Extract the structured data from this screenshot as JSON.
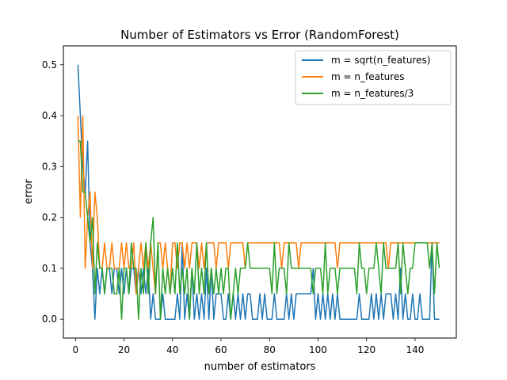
{
  "chart_data": {
    "type": "line",
    "title": "Number of Estimators vs Error (RandomForest)",
    "title_color": "#1f77b4",
    "xlabel": "number of estimators",
    "ylabel": "error",
    "xlim": [
      -5,
      157
    ],
    "ylim": [
      -0.037,
      0.537
    ],
    "xticks": [
      0,
      20,
      40,
      60,
      80,
      100,
      120,
      140
    ],
    "yticks": [
      0.0,
      0.1,
      0.2,
      0.3,
      0.4,
      0.5
    ],
    "xtick_labels": [
      "0",
      "20",
      "40",
      "60",
      "80",
      "100",
      "120",
      "140"
    ],
    "ytick_labels": [
      "0.0",
      "0.1",
      "0.2",
      "0.3",
      "0.4",
      "0.5"
    ],
    "grid": false,
    "legend_position": "top-right",
    "series": [
      {
        "name": "m = sqrt(n_features)",
        "color": "#1f77b4",
        "x": [
          1,
          2,
          3,
          4,
          5,
          6,
          7,
          8,
          9,
          10,
          11,
          12,
          13,
          14,
          15,
          16,
          17,
          18,
          19,
          20,
          21,
          22,
          23,
          24,
          25,
          26,
          27,
          28,
          29,
          30,
          31,
          32,
          33,
          34,
          35,
          36,
          37,
          38,
          39,
          40,
          41,
          42,
          43,
          44,
          45,
          46,
          47,
          48,
          49,
          50,
          51,
          52,
          53,
          54,
          55,
          56,
          57,
          58,
          59,
          60,
          61,
          62,
          63,
          64,
          65,
          66,
          67,
          68,
          69,
          70,
          71,
          72,
          73,
          74,
          75,
          76,
          77,
          78,
          79,
          80,
          81,
          82,
          83,
          84,
          85,
          86,
          87,
          88,
          89,
          90,
          91,
          92,
          93,
          94,
          95,
          96,
          97,
          98,
          99,
          100,
          101,
          102,
          103,
          104,
          105,
          106,
          107,
          108,
          109,
          110,
          111,
          112,
          113,
          114,
          115,
          116,
          117,
          118,
          119,
          120,
          121,
          122,
          123,
          124,
          125,
          126,
          127,
          128,
          129,
          130,
          131,
          132,
          133,
          134,
          135,
          136,
          137,
          138,
          139,
          140,
          141,
          142,
          143,
          144,
          145,
          146,
          147,
          148,
          149,
          150
        ],
        "values": [
          0.5,
          0.4,
          0.3,
          0.25,
          0.35,
          0.15,
          0.1,
          0.0,
          0.1,
          0.05,
          0.1,
          0.05,
          0.1,
          0.1,
          0.05,
          0.1,
          0.1,
          0.05,
          0.1,
          0.05,
          0.1,
          0.05,
          0.1,
          0.1,
          0.05,
          0.1,
          0.05,
          0.1,
          0.05,
          0.1,
          0.0,
          0.05,
          0.0,
          0.0,
          0.0,
          0.05,
          0.0,
          0.0,
          0.0,
          0.0,
          0.0,
          0.05,
          0.0,
          0.15,
          0.0,
          0.05,
          0.0,
          0.1,
          0.0,
          0.05,
          0.0,
          0.05,
          0.0,
          0.1,
          0.0,
          0.1,
          0.0,
          0.05,
          0.05,
          0.05,
          0.0,
          0.0,
          0.05,
          0.0,
          0.05,
          0.0,
          0.05,
          0.0,
          0.05,
          0.0,
          0.05,
          0.05,
          0.0,
          0.0,
          0.0,
          0.05,
          0.0,
          0.05,
          0.0,
          0.0,
          0.0,
          0.05,
          0.0,
          0.0,
          0.0,
          0.0,
          0.05,
          0.0,
          0.05,
          0.0,
          0.05,
          0.05,
          0.05,
          0.05,
          0.05,
          0.05,
          0.05,
          0.1,
          0.0,
          0.05,
          0.0,
          0.05,
          0.0,
          0.05,
          0.0,
          0.05,
          0.0,
          0.05,
          0.0,
          0.0,
          0.0,
          0.0,
          0.0,
          0.0,
          0.0,
          0.0,
          0.05,
          0.0,
          0.0,
          0.0,
          0.0,
          0.05,
          0.0,
          0.05,
          0.0,
          0.05,
          0.0,
          0.05,
          0.05,
          0.05,
          0.0,
          0.05,
          0.0,
          0.1,
          0.0,
          0.05,
          0.0,
          0.0,
          0.05,
          0.0,
          0.0,
          0.05,
          0.0,
          0.0,
          0.0,
          0.0,
          0.15,
          0.0,
          0.0,
          0.0
        ],
        "note_first": ""
      },
      {
        "name": "m = n_features",
        "color": "#ff7f0e",
        "x": [
          1,
          2,
          3,
          4,
          5,
          6,
          7,
          8,
          9,
          10,
          11,
          12,
          13,
          14,
          15,
          16,
          17,
          18,
          19,
          20,
          21,
          22,
          23,
          24,
          25,
          26,
          27,
          28,
          29,
          30,
          31,
          32,
          33,
          34,
          35,
          36,
          37,
          38,
          39,
          40,
          41,
          42,
          43,
          44,
          45,
          46,
          47,
          48,
          49,
          50,
          51,
          52,
          53,
          54,
          55,
          56,
          57,
          58,
          59,
          60,
          61,
          62,
          63,
          64,
          65,
          66,
          67,
          68,
          69,
          70,
          71,
          72,
          73,
          74,
          75,
          76,
          77,
          78,
          79,
          80,
          81,
          82,
          83,
          84,
          85,
          86,
          87,
          88,
          89,
          90,
          91,
          92,
          93,
          94,
          95,
          96,
          97,
          98,
          99,
          100,
          101,
          102,
          103,
          104,
          105,
          106,
          107,
          108,
          109,
          110,
          111,
          112,
          113,
          114,
          115,
          116,
          117,
          118,
          119,
          120,
          121,
          122,
          123,
          124,
          125,
          126,
          127,
          128,
          129,
          130,
          131,
          132,
          133,
          134,
          135,
          136,
          137,
          138,
          139,
          140,
          141,
          142,
          143,
          144,
          145,
          146,
          147,
          148,
          149,
          150
        ],
        "values": [
          0.4,
          0.2,
          0.4,
          0.1,
          0.2,
          0.25,
          0.1,
          0.25,
          0.2,
          0.1,
          0.1,
          0.15,
          0.1,
          0.1,
          0.15,
          0.1,
          0.1,
          0.1,
          0.15,
          0.1,
          0.15,
          0.1,
          0.1,
          0.15,
          0.05,
          0.1,
          0.15,
          0.1,
          0.15,
          0.1,
          0.15,
          0.1,
          0.05,
          0.15,
          0.15,
          0.1,
          0.15,
          0.1,
          0.05,
          0.15,
          0.15,
          0.1,
          0.15,
          0.15,
          0.1,
          0.15,
          0.1,
          0.15,
          0.15,
          0.15,
          0.1,
          0.15,
          0.1,
          0.15,
          0.15,
          0.15,
          0.15,
          0.1,
          0.15,
          0.15,
          0.15,
          0.15,
          0.1,
          0.15,
          0.15,
          0.15,
          0.15,
          0.15,
          0.15,
          0.1,
          0.15,
          0.15,
          0.15,
          0.15,
          0.15,
          0.15,
          0.15,
          0.15,
          0.15,
          0.15,
          0.15,
          0.15,
          0.15,
          0.15,
          0.1,
          0.15,
          0.15,
          0.15,
          0.15,
          0.15,
          0.15,
          0.1,
          0.15,
          0.15,
          0.15,
          0.15,
          0.15,
          0.15,
          0.15,
          0.15,
          0.15,
          0.15,
          0.15,
          0.15,
          0.15,
          0.15,
          0.15,
          0.1,
          0.15,
          0.15,
          0.15,
          0.15,
          0.15,
          0.15,
          0.15,
          0.15,
          0.15,
          0.15,
          0.15,
          0.15,
          0.15,
          0.15,
          0.15,
          0.15,
          0.15,
          0.15,
          0.15,
          0.15,
          0.1,
          0.15,
          0.15,
          0.15,
          0.15,
          0.15,
          0.15,
          0.15,
          0.15,
          0.15,
          0.15,
          0.15,
          0.15,
          0.15,
          0.15,
          0.15,
          0.15,
          0.15,
          0.15,
          0.15,
          0.15,
          0.15
        ]
      },
      {
        "name": "m = n_features/3",
        "color": "#2ca02c",
        "x": [
          1,
          2,
          3,
          4,
          5,
          6,
          7,
          8,
          9,
          10,
          11,
          12,
          13,
          14,
          15,
          16,
          17,
          18,
          19,
          20,
          21,
          22,
          23,
          24,
          25,
          26,
          27,
          28,
          29,
          30,
          31,
          32,
          33,
          34,
          35,
          36,
          37,
          38,
          39,
          40,
          41,
          42,
          43,
          44,
          45,
          46,
          47,
          48,
          49,
          50,
          51,
          52,
          53,
          54,
          55,
          56,
          57,
          58,
          59,
          60,
          61,
          62,
          63,
          64,
          65,
          66,
          67,
          68,
          69,
          70,
          71,
          72,
          73,
          74,
          75,
          76,
          77,
          78,
          79,
          80,
          81,
          82,
          83,
          84,
          85,
          86,
          87,
          88,
          89,
          90,
          91,
          92,
          93,
          94,
          95,
          96,
          97,
          98,
          99,
          100,
          101,
          102,
          103,
          104,
          105,
          106,
          107,
          108,
          109,
          110,
          111,
          112,
          113,
          114,
          115,
          116,
          117,
          118,
          119,
          120,
          121,
          122,
          123,
          124,
          125,
          126,
          127,
          128,
          129,
          130,
          131,
          132,
          133,
          134,
          135,
          136,
          137,
          138,
          139,
          140,
          141,
          142,
          143,
          144,
          145,
          146,
          147,
          148,
          149,
          150
        ],
        "values": [
          0.35,
          0.35,
          0.25,
          0.25,
          0.2,
          0.15,
          0.2,
          0.05,
          0.15,
          0.1,
          0.1,
          0.05,
          0.1,
          0.1,
          0.1,
          0.05,
          0.05,
          0.1,
          0.0,
          0.1,
          0.1,
          0.05,
          0.15,
          0.1,
          0.1,
          0.0,
          0.1,
          0.05,
          0.15,
          0.05,
          0.15,
          0.2,
          0.05,
          0.15,
          0.0,
          0.1,
          0.05,
          0.1,
          0.05,
          0.1,
          0.05,
          0.15,
          0.05,
          0.1,
          0.05,
          0.1,
          0.0,
          0.1,
          0.05,
          0.15,
          0.05,
          0.1,
          0.05,
          0.15,
          0.05,
          0.1,
          0.05,
          0.1,
          0.05,
          0.1,
          0.05,
          0.1,
          0.1,
          0.0,
          0.05,
          0.1,
          0.05,
          0.1,
          0.1,
          0.1,
          0.15,
          0.1,
          0.1,
          0.1,
          0.1,
          0.1,
          0.1,
          0.1,
          0.1,
          0.1,
          0.05,
          0.15,
          0.05,
          0.1,
          0.1,
          0.1,
          0.05,
          0.15,
          0.1,
          0.1,
          0.1,
          0.1,
          0.1,
          0.1,
          0.1,
          0.1,
          0.1,
          0.05,
          0.1,
          0.1,
          0.1,
          0.05,
          0.15,
          0.05,
          0.1,
          0.1,
          0.1,
          0.05,
          0.1,
          0.1,
          0.1,
          0.1,
          0.1,
          0.1,
          0.1,
          0.05,
          0.15,
          0.1,
          0.1,
          0.05,
          0.1,
          0.1,
          0.1,
          0.15,
          0.1,
          0.05,
          0.15,
          0.1,
          0.1,
          0.1,
          0.1,
          0.1,
          0.15,
          0.05,
          0.15,
          0.1,
          0.05,
          0.1,
          0.1,
          0.15,
          0.15,
          0.15,
          0.15,
          0.15,
          0.15,
          0.1,
          0.15,
          0.05,
          0.15,
          0.1
        ]
      }
    ]
  }
}
